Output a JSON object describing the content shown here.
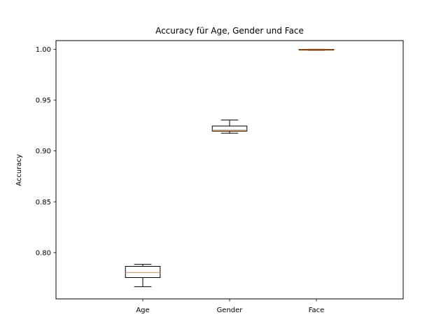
{
  "chart_data": {
    "type": "box",
    "title": "Accuracy für Age, Gender und Face",
    "xlabel": "",
    "ylabel": "Accuracy",
    "categories": [
      "Age",
      "Gender",
      "Face"
    ],
    "ylim": [
      0.7545,
      1.0085
    ],
    "yticks": [
      0.8,
      0.85,
      0.9,
      0.95,
      1.0
    ],
    "ytick_labels": [
      "0.80",
      "0.85",
      "0.90",
      "0.95",
      "1.00"
    ],
    "grid": false,
    "boxes": [
      {
        "category": "Age",
        "whisker_low": 0.7665,
        "q1": 0.7755,
        "median": 0.7805,
        "q3": 0.7865,
        "whisker_high": 0.7885
      },
      {
        "category": "Gender",
        "whisker_low": 0.9175,
        "q1": 0.9195,
        "median": 0.9205,
        "q3": 0.9245,
        "whisker_high": 0.9305
      },
      {
        "category": "Face",
        "whisker_low": 0.999,
        "q1": 0.9992,
        "median": 0.9996,
        "q3": 0.9999,
        "whisker_high": 1.0
      }
    ],
    "colors": {
      "box": "#000000",
      "median": "#ff7f0e",
      "axes": "#000000"
    }
  }
}
